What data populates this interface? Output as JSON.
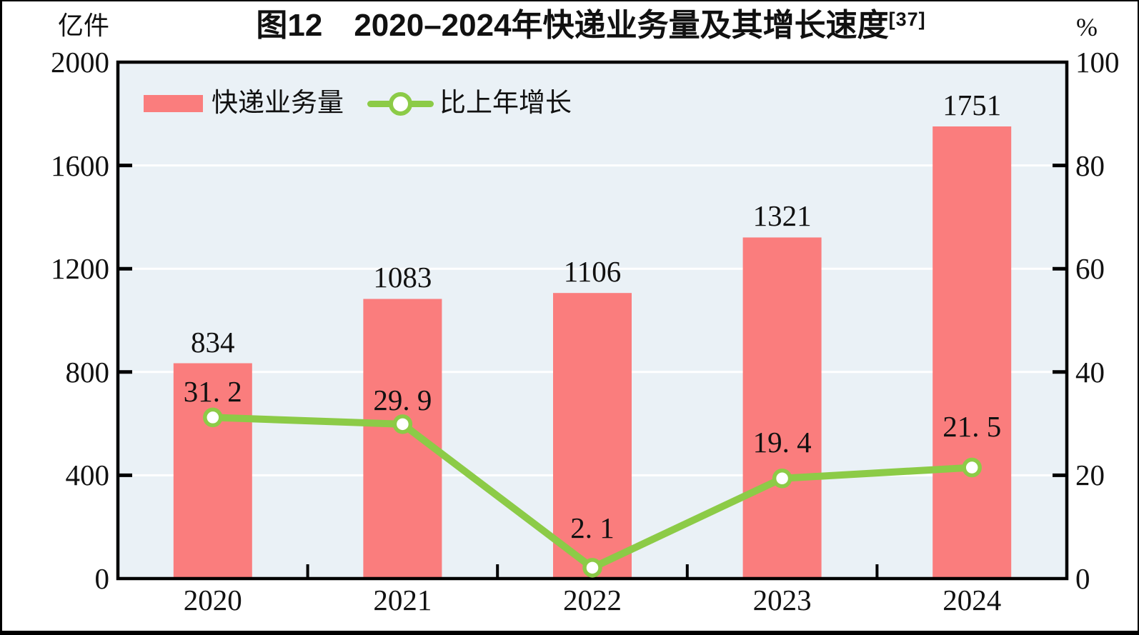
{
  "figure": {
    "title": "图12　2020–2024年快递业务量及其增长速度",
    "title_ref": "[37]",
    "left_unit": "亿件",
    "right_unit": "%"
  },
  "legend": {
    "bar_label": "快递业务量",
    "line_label": "比上年增长"
  },
  "chart_data": {
    "type": "bar",
    "subtype": "bar+line combo, dual axis",
    "title": "图12 2020–2024年快递业务量及其增长速度 [37]",
    "categories": [
      "2020",
      "2021",
      "2022",
      "2023",
      "2024"
    ],
    "series": [
      {
        "name": "快递业务量",
        "chart": "bar",
        "axis": "left",
        "unit": "亿件",
        "values": [
          834,
          1083,
          1106,
          1321,
          1751
        ],
        "labels": [
          "834",
          "1083",
          "1106",
          "1321",
          "1751"
        ],
        "color": "#FA7D7D"
      },
      {
        "name": "比上年增长",
        "chart": "line",
        "axis": "right",
        "unit": "%",
        "values": [
          31.2,
          29.9,
          2.1,
          19.4,
          21.5
        ],
        "labels": [
          "31. 2",
          "29. 9",
          "2. 1",
          "19. 4",
          "21. 5"
        ],
        "color": "#8CCB47",
        "marker": "white circle with green ring"
      }
    ],
    "left_axis": {
      "label": "亿件",
      "min": 0,
      "max": 2000,
      "ticks": [
        "0",
        "400",
        "800",
        "1200",
        "1600",
        "2000"
      ]
    },
    "right_axis": {
      "label": "%",
      "min": 0,
      "max": 100,
      "ticks": [
        "0",
        "20",
        "40",
        "60",
        "80",
        "100"
      ]
    },
    "grid": "horizontal white gridlines at interior ticks",
    "plot_bg": "#EAF1F6",
    "frame_color": "#000000",
    "legend_position": "top-left inside plot"
  }
}
